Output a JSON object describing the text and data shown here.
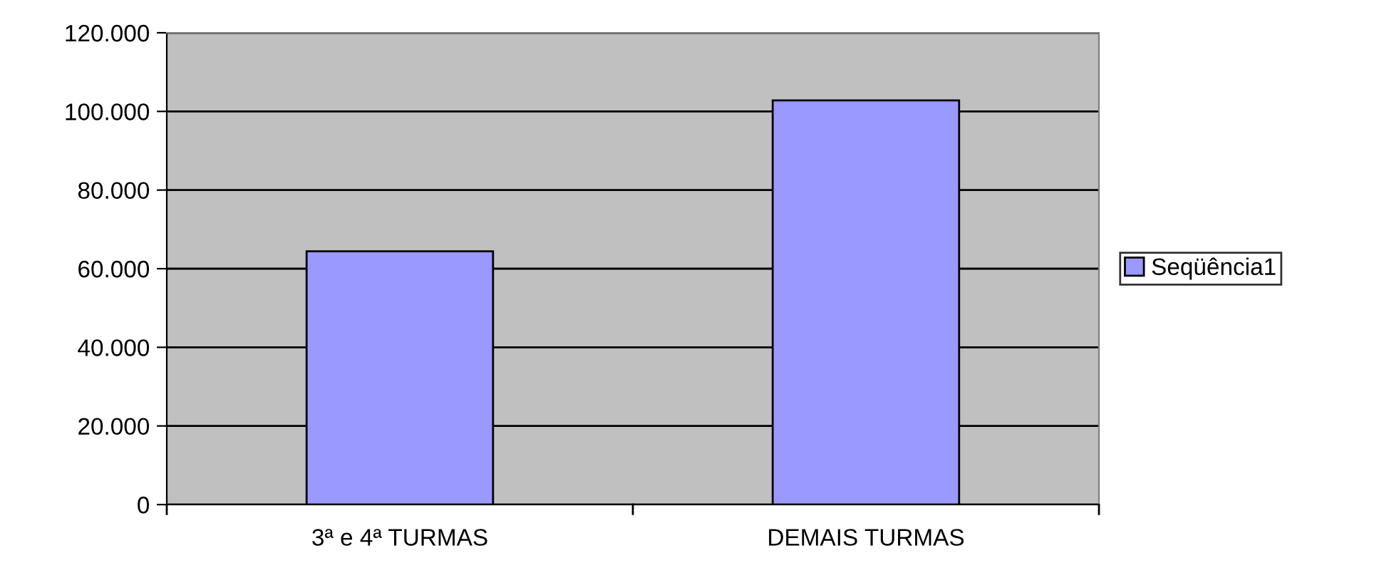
{
  "chart_data": {
    "type": "bar",
    "categories": [
      "3ª e 4ª TURMAS",
      "DEMAIS TURMAS"
    ],
    "series": [
      {
        "name": "Seqüência1",
        "color": "#9999ff",
        "values": [
          64400,
          102800
        ]
      }
    ],
    "ylim": [
      0,
      120000
    ],
    "yticks": [
      {
        "value": 0,
        "label": "0"
      },
      {
        "value": 20000,
        "label": "20.000"
      },
      {
        "value": 40000,
        "label": "40.000"
      },
      {
        "value": 60000,
        "label": "60.000"
      },
      {
        "value": 80000,
        "label": "80.000"
      },
      {
        "value": 100000,
        "label": "100.000"
      },
      {
        "value": 120000,
        "label": "120.000"
      }
    ],
    "grid": "y",
    "legend": "right"
  }
}
